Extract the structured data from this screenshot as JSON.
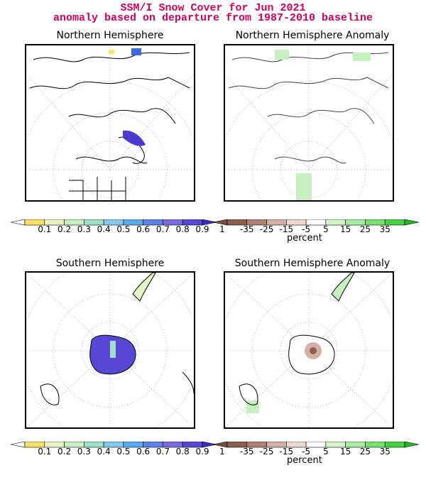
{
  "header": {
    "title_line1": "SSM/I Snow Cover for Jun 2021",
    "title_line2": "anomaly based on departure from 1987-2010 baseline"
  },
  "panels": {
    "nh": {
      "title": "Northern Hemisphere"
    },
    "nh_anom": {
      "title": "Northern Hemisphere Anomaly"
    },
    "sh": {
      "title": "Southern Hemisphere"
    },
    "sh_anom": {
      "title": "Southern Hemisphere Anomaly"
    }
  },
  "cover_scale": {
    "labels": [
      "0.1",
      "0.2",
      "0.3",
      "0.4",
      "0.5",
      "0.6",
      "0.7",
      "0.8",
      "0.9",
      "1"
    ],
    "colors": [
      "#ffffff",
      "#ffe066",
      "#e6f5c2",
      "#c6f0c0",
      "#9fe0c8",
      "#86c8ec",
      "#5aaaf0",
      "#5a82e8",
      "#7a6ae0",
      "#5a46d4",
      "#3c2ac8"
    ]
  },
  "anomaly_scale": {
    "labels": [
      "-35",
      "-25",
      "-15",
      "-5",
      "5",
      "15",
      "25",
      "35"
    ],
    "unit": "percent",
    "colors": [
      "#7a4e3e",
      "#8c5e4e",
      "#b08070",
      "#d4b0a4",
      "#eed8cc",
      "#ffffff",
      "#d4f5c8",
      "#a8eea0",
      "#78e070",
      "#46d046",
      "#22b822"
    ]
  }
}
